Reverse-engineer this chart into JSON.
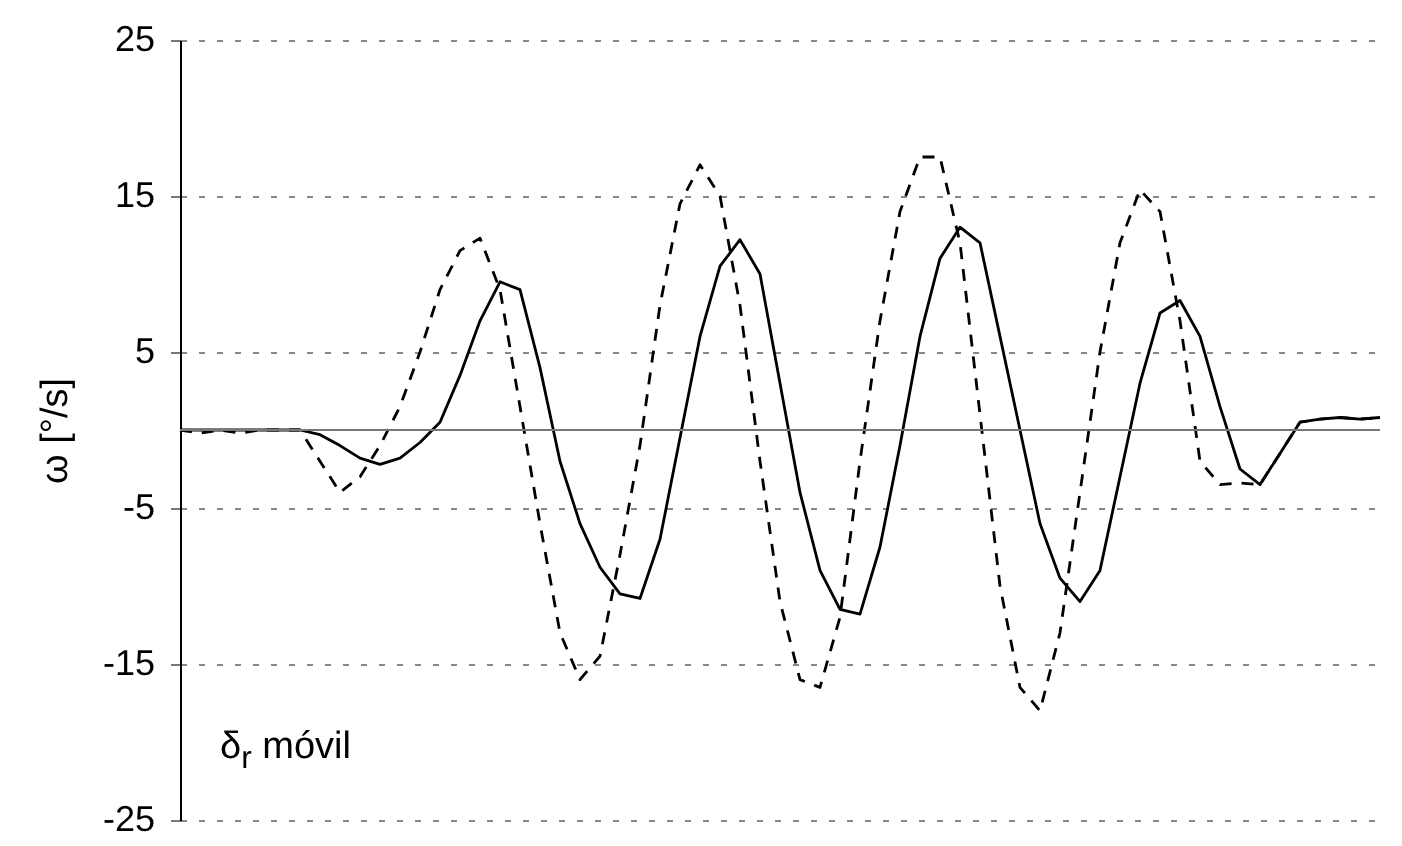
{
  "chart_data": {
    "type": "line",
    "ylabel": "ω [°/s]",
    "categories": [
      null,
      null,
      null,
      null,
      null,
      null,
      null,
      null,
      null,
      null,
      null,
      null,
      null,
      null,
      null,
      null,
      null,
      null,
      null,
      null,
      null,
      null,
      null,
      null,
      null,
      null,
      null,
      null,
      null,
      null,
      null,
      null,
      null,
      null,
      null,
      null,
      null,
      null,
      null,
      null,
      null,
      null,
      null,
      null,
      null,
      null,
      null,
      null,
      null,
      null,
      null,
      null,
      null,
      null,
      null,
      null,
      null,
      null,
      null,
      null,
      null
    ],
    "series": [
      {
        "color": "#000000",
        "line_style": "solid",
        "values": [
          0,
          0,
          0,
          0,
          0,
          0,
          0,
          -0.3,
          -1,
          -1.8,
          -2.2,
          -1.8,
          -0.8,
          0.5,
          3.5,
          7,
          9.5,
          9,
          4,
          -2,
          -6,
          -8.8,
          -10.5,
          -10.8,
          -7,
          -0.5,
          6,
          10.5,
          12.2,
          10,
          3,
          -4,
          -9,
          -11.5,
          -11.8,
          -7.5,
          -1,
          6,
          11,
          13,
          12,
          6,
          0,
          -6,
          -9.5,
          -11,
          -9,
          -3,
          3,
          7.5,
          8.3,
          6,
          1.5,
          -2.5,
          -3.5,
          -1.5,
          0.5,
          0.7,
          0.8,
          0.7,
          0.8
        ]
      },
      {
        "color": "#000000",
        "line_style": "dashed",
        "values": [
          0,
          -0.2,
          0,
          -0.2,
          0,
          0,
          0,
          -2,
          -4,
          -3,
          -1,
          1.5,
          5,
          9,
          11.5,
          12.3,
          9,
          1.5,
          -6,
          -13,
          -16,
          -14.5,
          -8,
          -1,
          8,
          14.5,
          17,
          15,
          8,
          -2,
          -11,
          -16,
          -16.5,
          -12,
          -2,
          7,
          14,
          17.5,
          17.5,
          12,
          1,
          -10,
          -16.5,
          -18,
          -13,
          -4,
          5,
          12,
          15.4,
          14,
          7,
          -2,
          -3.5,
          -3.4,
          -3.5,
          -1.5,
          0.5,
          0.7,
          0.8,
          0.7,
          0.8
        ]
      }
    ],
    "ylim": [
      -25,
      25
    ],
    "yticks": [
      -25,
      -15,
      -5,
      5,
      15,
      25
    ],
    "grid": "y",
    "tick_labels": "y",
    "marker": "none",
    "annotations": [
      "δ$_{r}$ móvil"
    ]
  }
}
